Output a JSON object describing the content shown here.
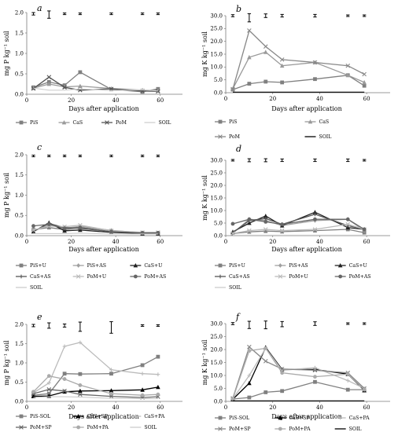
{
  "chart_data": [
    {
      "panel": "a",
      "type": "line",
      "xlabel": "Days after application",
      "ylabel": "mg P kg⁻¹ soil",
      "xlim": [
        0,
        70
      ],
      "ylim": [
        0,
        2.0
      ],
      "yticks": [
        0,
        0.5,
        1.0,
        1.5,
        2.0
      ],
      "ytick_labels": [
        "0.0",
        "0.5",
        "1.0",
        "1.5",
        "2.0"
      ],
      "xticks": [
        0,
        20,
        40,
        60
      ],
      "xtick_labels": [
        "0",
        "20",
        "40",
        "60"
      ],
      "x": [
        3,
        10,
        17,
        24,
        38,
        52,
        59
      ],
      "series": [
        {
          "name": "PiS",
          "color": "#808080",
          "marker": "square",
          "values": [
            0.17,
            0.3,
            0.22,
            0.54,
            0.12,
            0.06,
            0.13
          ]
        },
        {
          "name": "CaS",
          "color": "#9a9a9a",
          "marker": "triangle",
          "values": [
            0.15,
            0.25,
            0.18,
            0.2,
            0.14,
            0.1,
            0.09
          ]
        },
        {
          "name": "PoM",
          "color": "#555555",
          "marker": "x",
          "values": [
            0.14,
            0.42,
            0.17,
            0.1,
            0.13,
            0.08,
            0.07
          ]
        },
        {
          "name": "SOIL",
          "color": "#cfcfcf",
          "marker": "none",
          "values": [
            0.15,
            0.1,
            0.1,
            0.13,
            0.09,
            0.11,
            0.08
          ]
        }
      ],
      "error_bars": [
        {
          "x": 3,
          "y": 1.97,
          "half": 0.03
        },
        {
          "x": 10,
          "y": 1.95,
          "half": 0.09
        },
        {
          "x": 17,
          "y": 1.97,
          "half": 0.02
        },
        {
          "x": 24,
          "y": 1.97,
          "half": 0.02
        },
        {
          "x": 38,
          "y": 1.97,
          "half": 0.02
        },
        {
          "x": 52,
          "y": 1.97,
          "half": 0.02
        },
        {
          "x": 59,
          "y": 1.97,
          "half": 0.02
        }
      ]
    },
    {
      "panel": "b",
      "type": "line",
      "xlabel": "Days after application",
      "ylabel": "mg K kg⁻¹ soil",
      "xlim": [
        0,
        70
      ],
      "ylim": [
        0,
        30
      ],
      "yticks": [
        0,
        5,
        10,
        15,
        20,
        25,
        30
      ],
      "ytick_labels": [
        "0.0",
        "5.0",
        "10.0",
        "15.0",
        "20.0",
        "25.0",
        "30.0"
      ],
      "xticks": [
        0,
        20,
        40,
        60
      ],
      "xtick_labels": [
        "0",
        "20",
        "40",
        "60"
      ],
      "x": [
        3,
        10,
        17,
        24,
        38,
        52,
        59
      ],
      "series": [
        {
          "name": "PiS",
          "color": "#808080",
          "marker": "square",
          "values": [
            1.2,
            3.5,
            4.3,
            4.0,
            5.3,
            6.8,
            2.7
          ]
        },
        {
          "name": "CaS",
          "color": "#9a9a9a",
          "marker": "triangle",
          "values": [
            1.5,
            13.8,
            15.8,
            10.5,
            11.8,
            6.8,
            4.0
          ]
        },
        {
          "name": "PoM",
          "color": "#888888",
          "marker": "x",
          "values": [
            1.4,
            24.2,
            18.0,
            12.9,
            11.8,
            10.5,
            7.2
          ]
        },
        {
          "name": "SOIL",
          "color": "#000000",
          "marker": "none",
          "values": [
            0.2,
            0.2,
            0.2,
            0.2,
            0.2,
            0.2,
            0.2
          ]
        }
      ],
      "error_bars": [
        {
          "x": 3,
          "y": 30,
          "half": 0.4
        },
        {
          "x": 10,
          "y": 29.2,
          "half": 1.6
        },
        {
          "x": 17,
          "y": 30,
          "half": 0.7
        },
        {
          "x": 24,
          "y": 30,
          "half": 0.5
        },
        {
          "x": 38,
          "y": 30,
          "half": 0.5
        },
        {
          "x": 52,
          "y": 30,
          "half": 0.3
        },
        {
          "x": 59,
          "y": 30,
          "half": 0.3
        }
      ]
    },
    {
      "panel": "c",
      "type": "line",
      "xlabel": "Days after application",
      "ylabel": "mg P kg⁻¹ soil",
      "xlim": [
        0,
        70
      ],
      "ylim": [
        0,
        2.0
      ],
      "yticks": [
        0,
        0.5,
        1.0,
        1.5,
        2.0
      ],
      "ytick_labels": [
        "0.0",
        "0.5",
        "1.0",
        "1.5",
        "2.0"
      ],
      "xticks": [
        0,
        20,
        40,
        60
      ],
      "xtick_labels": [
        "0",
        "20",
        "40",
        "60"
      ],
      "x": [
        3,
        10,
        17,
        24,
        38,
        52,
        59
      ],
      "series": [
        {
          "name": "PiS+U",
          "color": "#808080",
          "marker": "square",
          "values": [
            0.15,
            0.2,
            0.15,
            0.2,
            0.1,
            0.06,
            0.07
          ]
        },
        {
          "name": "PiS+AS",
          "color": "#a0a0a0",
          "marker": "diamond",
          "values": [
            0.12,
            0.26,
            0.18,
            0.23,
            0.13,
            0.07,
            0.06
          ]
        },
        {
          "name": "CaS+U",
          "color": "#222222",
          "marker": "triangle",
          "values": [
            0.1,
            0.32,
            0.12,
            0.14,
            0.08,
            0.05,
            0.05
          ]
        },
        {
          "name": "CaS+AS",
          "color": "#555555",
          "marker": "plus",
          "values": [
            0.11,
            0.3,
            0.2,
            0.18,
            0.1,
            0.06,
            0.06
          ]
        },
        {
          "name": "PoM+U",
          "color": "#bbbbbb",
          "marker": "x",
          "values": [
            0.14,
            0.24,
            0.22,
            0.26,
            0.12,
            0.08,
            0.08
          ]
        },
        {
          "name": "PoM+AS",
          "color": "#666666",
          "marker": "circle",
          "values": [
            0.24,
            0.28,
            0.18,
            0.2,
            0.1,
            0.07,
            0.07
          ]
        },
        {
          "name": "SOIL",
          "color": "#cccccc",
          "marker": "none",
          "values": [
            0.05,
            0.05,
            0.05,
            0.06,
            0.04,
            0.04,
            0.04
          ]
        }
      ],
      "error_bars": [
        {
          "x": 3,
          "y": 1.97,
          "half": 0.02
        },
        {
          "x": 10,
          "y": 1.97,
          "half": 0.02
        },
        {
          "x": 17,
          "y": 1.97,
          "half": 0.02
        },
        {
          "x": 24,
          "y": 1.97,
          "half": 0.02
        },
        {
          "x": 38,
          "y": 1.97,
          "half": 0.02
        },
        {
          "x": 52,
          "y": 1.97,
          "half": 0.02
        },
        {
          "x": 59,
          "y": 1.97,
          "half": 0.02
        }
      ]
    },
    {
      "panel": "d",
      "type": "line",
      "xlabel": "Days after application",
      "ylabel": "mg K kg⁻¹ soil",
      "xlim": [
        0,
        70
      ],
      "ylim": [
        0,
        30
      ],
      "yticks": [
        0,
        5,
        10,
        15,
        20,
        25,
        30
      ],
      "ytick_labels": [
        "0.0",
        "5.0",
        "10.0",
        "15.0",
        "20.0",
        "25.0",
        "30.0"
      ],
      "xticks": [
        0,
        20,
        40,
        60
      ],
      "xtick_labels": [
        "0",
        "20",
        "40",
        "60"
      ],
      "x": [
        3,
        10,
        17,
        24,
        38,
        52,
        59
      ],
      "series": [
        {
          "name": "PiS+U",
          "color": "#808080",
          "marker": "square",
          "values": [
            0.8,
            1.5,
            1.8,
            1.6,
            2.0,
            2.5,
            1.2
          ]
        },
        {
          "name": "PiS+AS",
          "color": "#a0a0a0",
          "marker": "diamond",
          "values": [
            1.0,
            6.5,
            6.0,
            4.0,
            6.0,
            6.5,
            2.0
          ]
        },
        {
          "name": "CaS+U",
          "color": "#222222",
          "marker": "triangle",
          "values": [
            1.5,
            5.0,
            7.8,
            4.0,
            9.3,
            3.2,
            2.5
          ]
        },
        {
          "name": "CaS+AS",
          "color": "#555555",
          "marker": "plus",
          "values": [
            1.2,
            6.0,
            6.8,
            4.5,
            8.5,
            4.0,
            2.5
          ]
        },
        {
          "name": "PoM+U",
          "color": "#bbbbbb",
          "marker": "x",
          "values": [
            0.9,
            2.0,
            2.5,
            2.0,
            2.5,
            4.5,
            2.5
          ]
        },
        {
          "name": "PoM+AS",
          "color": "#666666",
          "marker": "circle",
          "values": [
            4.7,
            6.5,
            5.5,
            4.5,
            6.5,
            6.5,
            2.5
          ]
        },
        {
          "name": "SOIL",
          "color": "#cccccc",
          "marker": "none",
          "values": [
            0.2,
            0.2,
            0.2,
            0.2,
            0.2,
            0.2,
            0.2
          ]
        }
      ],
      "error_bars": [
        {
          "x": 3,
          "y": 30,
          "half": 0.3
        },
        {
          "x": 10,
          "y": 30,
          "half": 0.6
        },
        {
          "x": 17,
          "y": 30,
          "half": 0.6
        },
        {
          "x": 24,
          "y": 30,
          "half": 0.5
        },
        {
          "x": 38,
          "y": 30,
          "half": 0.5
        },
        {
          "x": 52,
          "y": 30,
          "half": 0.5
        },
        {
          "x": 59,
          "y": 30,
          "half": 0.3
        }
      ]
    },
    {
      "panel": "e",
      "type": "line",
      "xlabel": "Days after application",
      "ylabel": "mg P kg⁻¹ soil",
      "xlim": [
        0,
        70
      ],
      "ylim": [
        0,
        2.0
      ],
      "yticks": [
        0,
        0.5,
        1.0,
        1.5,
        2.0
      ],
      "ytick_labels": [
        "0.0",
        "0.5",
        "1.0",
        "1.5",
        "2.0"
      ],
      "xticks": [
        0,
        20,
        40,
        60
      ],
      "xtick_labels": [
        "0",
        "20",
        "40",
        "60"
      ],
      "x": [
        3,
        10,
        17,
        24,
        38,
        52,
        59
      ],
      "series": [
        {
          "name": "PiS-SOL",
          "color": "#808080",
          "marker": "square",
          "values": [
            0.16,
            0.2,
            0.72,
            0.71,
            0.72,
            0.94,
            1.16
          ]
        },
        {
          "name": "CaS+SP",
          "color": "#000000",
          "marker": "triangle",
          "values": [
            0.13,
            0.14,
            0.25,
            0.27,
            0.28,
            0.3,
            0.37
          ]
        },
        {
          "name": "CaS+PA",
          "color": "#bbbbbb",
          "marker": "plus",
          "values": [
            0.22,
            0.48,
            1.43,
            1.53,
            0.82,
            0.72,
            0.7
          ]
        },
        {
          "name": "PoM+SP",
          "color": "#666666",
          "marker": "x",
          "values": [
            0.2,
            0.31,
            0.27,
            0.18,
            0.13,
            0.1,
            0.12
          ]
        },
        {
          "name": "PoM+PA",
          "color": "#aaaaaa",
          "marker": "circle",
          "values": [
            0.25,
            0.66,
            0.58,
            0.42,
            0.2,
            0.16,
            0.18
          ]
        },
        {
          "name": "SOIL",
          "color": "#cccccc",
          "marker": "none",
          "values": [
            0.1,
            0.12,
            0.12,
            0.11,
            0.08,
            0.07,
            0.07
          ]
        }
      ],
      "error_bars": [
        {
          "x": 3,
          "y": 1.97,
          "half": 0.03
        },
        {
          "x": 10,
          "y": 1.97,
          "half": 0.07
        },
        {
          "x": 17,
          "y": 1.97,
          "half": 0.04
        },
        {
          "x": 24,
          "y": 1.94,
          "half": 0.12
        },
        {
          "x": 38,
          "y": 1.92,
          "half": 0.15
        },
        {
          "x": 52,
          "y": 1.97,
          "half": 0.02
        },
        {
          "x": 59,
          "y": 1.97,
          "half": 0.02
        }
      ]
    },
    {
      "panel": "f",
      "type": "line",
      "xlabel": "Days after application",
      "ylabel": "mg K kg⁻¹ soil",
      "xlim": [
        0,
        70
      ],
      "ylim": [
        0,
        30
      ],
      "yticks": [
        0,
        5,
        10,
        15,
        20,
        25,
        30
      ],
      "ytick_labels": [
        "0.0",
        "5.0",
        "10.0",
        "15.0",
        "20.0",
        "25.0",
        "30.0"
      ],
      "xticks": [
        0,
        20,
        40,
        60
      ],
      "xtick_labels": [
        "0",
        "20",
        "40",
        "60"
      ],
      "x": [
        3,
        10,
        17,
        24,
        38,
        52,
        59
      ],
      "series": [
        {
          "name": "PiS-SOL",
          "color": "#808080",
          "marker": "square",
          "values": [
            0.9,
            1.5,
            3.5,
            4.0,
            7.5,
            4.5,
            4.5
          ]
        },
        {
          "name": "CaS+SP",
          "color": "#000000",
          "marker": "triangle",
          "values": [
            0.8,
            7.0,
            20.8,
            12.3,
            12.3,
            10.5,
            4.2
          ]
        },
        {
          "name": "CaS+PA",
          "color": "#bbbbbb",
          "marker": "plus",
          "values": [
            1.0,
            10.0,
            20.5,
            12.0,
            13.0,
            8.0,
            5.0
          ]
        },
        {
          "name": "PoM+SP",
          "color": "#888888",
          "marker": "x",
          "values": [
            1.2,
            21.0,
            15.5,
            12.5,
            12.0,
            11.0,
            5.0
          ]
        },
        {
          "name": "PoM+PA",
          "color": "#aaaaaa",
          "marker": "circle",
          "values": [
            1.0,
            19.5,
            20.5,
            11.0,
            9.5,
            10.5,
            4.5
          ]
        },
        {
          "name": "SOIL",
          "color": "#000000",
          "marker": "none",
          "values": [
            0.2,
            0.2,
            0.2,
            0.2,
            0.2,
            0.2,
            0.2
          ]
        }
      ],
      "error_bars": [
        {
          "x": 3,
          "y": 30,
          "half": 0.4
        },
        {
          "x": 10,
          "y": 29.5,
          "half": 1.4
        },
        {
          "x": 17,
          "y": 29.5,
          "half": 1.5
        },
        {
          "x": 24,
          "y": 29.8,
          "half": 1.0
        },
        {
          "x": 38,
          "y": 30,
          "half": 0.7
        },
        {
          "x": 52,
          "y": 30,
          "half": 0.3
        },
        {
          "x": 59,
          "y": 30,
          "half": 0.3
        }
      ]
    }
  ]
}
